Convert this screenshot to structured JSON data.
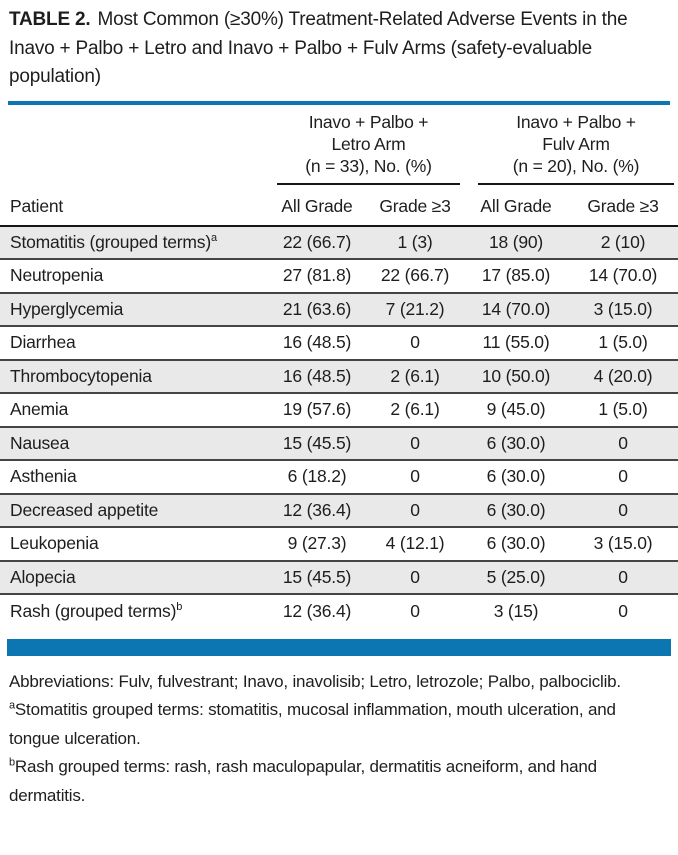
{
  "title": {
    "label": "TABLE 2.",
    "text": "Most Common (≥30%) Treatment-Related Adverse Events in the Inavo + Palbo + Letro and Inavo + Palbo + Fulv Arms (safety-evaluable population)"
  },
  "colors": {
    "accent_blue": "#0b76b1",
    "row_stripe": "#e9e9e9",
    "rule_dark": "#454545",
    "rule_black": "#161616",
    "text_color": "#1e1e1e"
  },
  "table": {
    "row_header": "Patient",
    "group_headers": [
      {
        "lines": [
          "Inavo + Palbo +",
          "Letro Arm",
          "(n = 33), No. (%)"
        ]
      },
      {
        "lines": [
          "Inavo + Palbo +",
          "Fulv Arm",
          "(n = 20), No. (%)"
        ]
      }
    ],
    "sub_headers": [
      "All Grade",
      "Grade ≥3",
      "All Grade",
      "Grade ≥3"
    ],
    "rows": [
      {
        "label": "Stomatitis (grouped terms)",
        "sup": "a",
        "values": [
          "22 (66.7)",
          "1 (3)",
          "18 (90)",
          "2 (10)"
        ]
      },
      {
        "label": "Neutropenia",
        "sup": "",
        "values": [
          "27 (81.8)",
          "22 (66.7)",
          "17 (85.0)",
          "14 (70.0)"
        ]
      },
      {
        "label": "Hyperglycemia",
        "sup": "",
        "values": [
          "21 (63.6)",
          "7 (21.2)",
          "14 (70.0)",
          "3 (15.0)"
        ]
      },
      {
        "label": "Diarrhea",
        "sup": "",
        "values": [
          "16 (48.5)",
          "0",
          "11 (55.0)",
          "1 (5.0)"
        ]
      },
      {
        "label": "Thrombocytopenia",
        "sup": "",
        "values": [
          "16 (48.5)",
          "2 (6.1)",
          "10 (50.0)",
          "4 (20.0)"
        ]
      },
      {
        "label": "Anemia",
        "sup": "",
        "values": [
          "19 (57.6)",
          "2 (6.1)",
          "9 (45.0)",
          "1 (5.0)"
        ]
      },
      {
        "label": "Nausea",
        "sup": "",
        "values": [
          "15 (45.5)",
          "0",
          "6 (30.0)",
          "0"
        ]
      },
      {
        "label": "Asthenia",
        "sup": "",
        "values": [
          "6 (18.2)",
          "0",
          "6 (30.0)",
          "0"
        ]
      },
      {
        "label": "Decreased appetite",
        "sup": "",
        "values": [
          "12 (36.4)",
          "0",
          "6 (30.0)",
          "0"
        ]
      },
      {
        "label": "Leukopenia",
        "sup": "",
        "values": [
          "9 (27.3)",
          "4 (12.1)",
          "6 (30.0)",
          "3 (15.0)"
        ]
      },
      {
        "label": "Alopecia",
        "sup": "",
        "values": [
          "15 (45.5)",
          "0",
          "5 (25.0)",
          "0"
        ]
      },
      {
        "label": "Rash (grouped terms)",
        "sup": "b",
        "values": [
          "12 (36.4)",
          "0",
          "3 (15)",
          "0"
        ]
      }
    ]
  },
  "footnotes": [
    {
      "sup": "",
      "text": "Abbreviations: Fulv, fulvestrant; Inavo, inavolisib; Letro, letrozole; Palbo, palbociclib."
    },
    {
      "sup": "a",
      "text": "Stomatitis grouped terms: stomatitis, mucosal inflammation, mouth ulceration, and tongue ulceration."
    },
    {
      "sup": "b",
      "text": "Rash grouped terms: rash, rash maculopapular, dermatitis acneiform, and hand dermatitis."
    }
  ]
}
